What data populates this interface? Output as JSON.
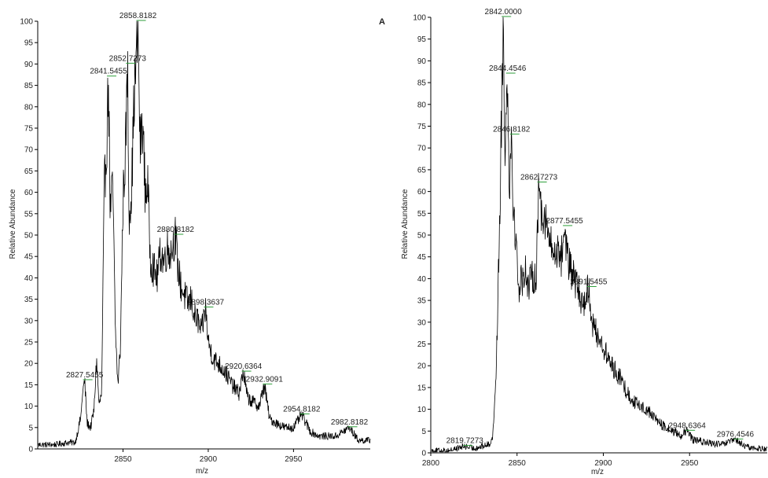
{
  "colors": {
    "trace": "#000000",
    "axis": "#000000",
    "peak_marker": "#2e9e3a",
    "text": "#222222"
  },
  "chart_data": [
    {
      "type": "line",
      "xlabel": "m/z",
      "ylabel": "Relative Abundance",
      "panel_label": "A",
      "xlim": [
        2800,
        2995
      ],
      "ylim": [
        0,
        100
      ],
      "x_ticks": [
        2850,
        2900,
        2950
      ],
      "y_ticks": [
        0,
        5,
        10,
        15,
        20,
        25,
        30,
        35,
        40,
        45,
        50,
        55,
        60,
        65,
        70,
        75,
        80,
        85,
        90,
        95,
        100
      ],
      "grid": false,
      "series": [
        {
          "points": [
            [
              2800,
              1
            ],
            [
              2810,
              1
            ],
            [
              2818,
              1.5
            ],
            [
              2822,
              1.5
            ],
            [
              2824,
              5
            ],
            [
              2825.5,
              8
            ],
            [
              2826,
              12
            ],
            [
              2827.5,
              16
            ],
            [
              2829,
              6
            ],
            [
              2831,
              5
            ],
            [
              2833,
              9
            ],
            [
              2834.5,
              21
            ],
            [
              2836,
              10
            ],
            [
              2837.5,
              13
            ],
            [
              2839,
              60
            ],
            [
              2840.5,
              72
            ],
            [
              2841.5,
              87
            ],
            [
              2842.5,
              55
            ],
            [
              2844,
              62
            ],
            [
              2845.5,
              28
            ],
            [
              2847,
              15
            ],
            [
              2848.5,
              24
            ],
            [
              2850,
              58
            ],
            [
              2851.5,
              70
            ],
            [
              2852.7,
              90
            ],
            [
              2853.5,
              55
            ],
            [
              2855,
              60
            ],
            [
              2856.5,
              82
            ],
            [
              2858,
              92
            ],
            [
              2858.8,
              100
            ],
            [
              2860,
              70
            ],
            [
              2861.5,
              77
            ],
            [
              2863,
              60
            ],
            [
              2864.5,
              62
            ],
            [
              2866,
              45
            ],
            [
              2868,
              42
            ],
            [
              2870,
              40
            ],
            [
              2872,
              46
            ],
            [
              2874,
              44
            ],
            [
              2876,
              47
            ],
            [
              2878,
              46
            ],
            [
              2880.8,
              50
            ],
            [
              2882,
              43
            ],
            [
              2884,
              38
            ],
            [
              2886,
              36
            ],
            [
              2888,
              34
            ],
            [
              2890,
              35
            ],
            [
              2892,
              31
            ],
            [
              2894,
              30
            ],
            [
              2896,
              27
            ],
            [
              2898.4,
              33
            ],
            [
              2900,
              25
            ],
            [
              2903,
              21
            ],
            [
              2906,
              20
            ],
            [
              2910,
              18
            ],
            [
              2914,
              15
            ],
            [
              2918,
              13
            ],
            [
              2920.6,
              18
            ],
            [
              2923,
              12
            ],
            [
              2926,
              11
            ],
            [
              2930,
              10
            ],
            [
              2932.9,
              15
            ],
            [
              2936,
              7
            ],
            [
              2940,
              6
            ],
            [
              2945,
              5
            ],
            [
              2950,
              5
            ],
            [
              2954.8,
              8
            ],
            [
              2960,
              4
            ],
            [
              2965,
              3
            ],
            [
              2970,
              3
            ],
            [
              2975,
              3
            ],
            [
              2982.8,
              5
            ],
            [
              2988,
              2
            ],
            [
              2995,
              2
            ]
          ]
        }
      ],
      "peak_labels": [
        {
          "text": "2858.8182",
          "x": 2858.8,
          "y": 100
        },
        {
          "text": "2852.7273",
          "x": 2852.7,
          "y": 90
        },
        {
          "text": "2841.5455",
          "x": 2841.5,
          "y": 87
        },
        {
          "text": "2880.8182",
          "x": 2880.8,
          "y": 50
        },
        {
          "text": "2898.3637",
          "x": 2898.4,
          "y": 33
        },
        {
          "text": "2920.6364",
          "x": 2920.6,
          "y": 18
        },
        {
          "text": "2932.9091",
          "x": 2932.9,
          "y": 15
        },
        {
          "text": "2827.5455",
          "x": 2827.5,
          "y": 16
        },
        {
          "text": "2954.8182",
          "x": 2954.8,
          "y": 8
        },
        {
          "text": "2982.8182",
          "x": 2982.8,
          "y": 5
        }
      ]
    },
    {
      "type": "line",
      "xlabel": "m/z",
      "ylabel": "Relative Abundance",
      "xlim": [
        2800,
        2995
      ],
      "ylim": [
        0,
        100
      ],
      "x_ticks": [
        2800,
        2850,
        2900,
        2950
      ],
      "y_ticks": [
        0,
        5,
        10,
        15,
        20,
        25,
        30,
        35,
        40,
        45,
        50,
        55,
        60,
        65,
        70,
        75,
        80,
        85,
        90,
        95,
        100
      ],
      "grid": false,
      "series": [
        {
          "points": [
            [
              2800,
              0.5
            ],
            [
              2810,
              0.5
            ],
            [
              2819.7,
              1.5
            ],
            [
              2825,
              1
            ],
            [
              2830,
              1.5
            ],
            [
              2834,
              2
            ],
            [
              2836,
              4
            ],
            [
              2838,
              20
            ],
            [
              2840,
              55
            ],
            [
              2842,
              100
            ],
            [
              2843,
              70
            ],
            [
              2844.5,
              87
            ],
            [
              2845.5,
              62
            ],
            [
              2846.8,
              73
            ],
            [
              2848,
              55
            ],
            [
              2849.5,
              48
            ],
            [
              2851,
              38
            ],
            [
              2853,
              40
            ],
            [
              2855,
              42
            ],
            [
              2857,
              38
            ],
            [
              2859,
              41
            ],
            [
              2861,
              40
            ],
            [
              2862.7,
              62
            ],
            [
              2864,
              56
            ],
            [
              2866,
              55
            ],
            [
              2868,
              50
            ],
            [
              2870,
              47
            ],
            [
              2872,
              45
            ],
            [
              2874,
              48
            ],
            [
              2875.5,
              44
            ],
            [
              2877.5,
              52
            ],
            [
              2880,
              43
            ],
            [
              2882,
              41
            ],
            [
              2885,
              38
            ],
            [
              2888,
              34
            ],
            [
              2891.5,
              38
            ],
            [
              2894,
              29
            ],
            [
              2897,
              27
            ],
            [
              2900,
              24
            ],
            [
              2905,
              20
            ],
            [
              2910,
              17
            ],
            [
              2915,
              13
            ],
            [
              2920,
              11
            ],
            [
              2925,
              10
            ],
            [
              2930,
              8
            ],
            [
              2935,
              6
            ],
            [
              2940,
              5
            ],
            [
              2945,
              4
            ],
            [
              2948.6,
              5
            ],
            [
              2952,
              3
            ],
            [
              2958,
              2.5
            ],
            [
              2965,
              2
            ],
            [
              2970,
              2
            ],
            [
              2976.5,
              3
            ],
            [
              2982,
              1.5
            ],
            [
              2988,
              1
            ],
            [
              2995,
              1
            ]
          ]
        }
      ],
      "peak_labels": [
        {
          "text": "2842.0000",
          "x": 2842.0,
          "y": 100
        },
        {
          "text": "2844.4546",
          "x": 2844.5,
          "y": 87
        },
        {
          "text": "2846.8182",
          "x": 2846.8,
          "y": 73
        },
        {
          "text": "2862.7273",
          "x": 2862.7,
          "y": 62
        },
        {
          "text": "2877.5455",
          "x": 2877.5,
          "y": 52
        },
        {
          "text": "2891.5455",
          "x": 2891.5,
          "y": 38
        },
        {
          "text": "2819.7273",
          "x": 2819.7,
          "y": 1.5
        },
        {
          "text": "2948.6364",
          "x": 2948.6,
          "y": 5
        },
        {
          "text": "2976.4546",
          "x": 2976.5,
          "y": 3
        }
      ]
    }
  ]
}
